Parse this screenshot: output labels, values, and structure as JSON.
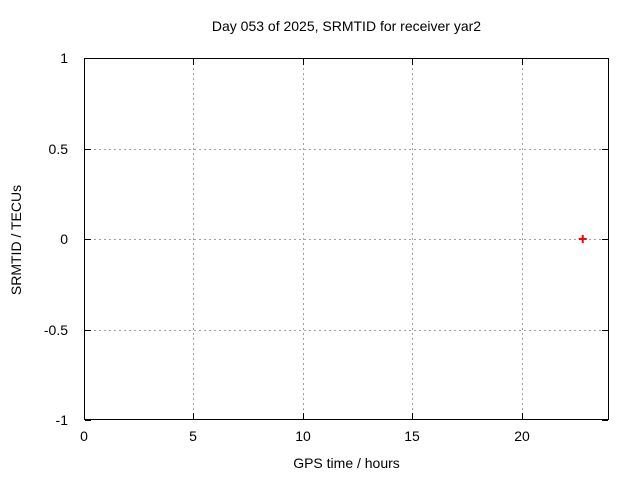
{
  "window": {
    "background": "#ffffff"
  },
  "chart_data": {
    "type": "scatter",
    "title": "Day 053 of 2025, SRMTID for receiver yar2",
    "xlabel": "GPS time / hours",
    "ylabel": "SRMTID / TECUs",
    "xlim": [
      0,
      24
    ],
    "ylim": [
      -1,
      1
    ],
    "xticks": [
      0,
      5,
      10,
      15,
      20
    ],
    "xticklabels": [
      "0",
      "5",
      "10",
      "15",
      "20"
    ],
    "yticks": [
      1,
      0.5,
      0,
      -0.5,
      -1
    ],
    "yticklabels": [
      "1",
      "0.5",
      "0",
      "-0.5",
      "-1"
    ],
    "grid": true,
    "legend_position": "none",
    "series": [
      {
        "name": "SRMTID",
        "marker": "plus",
        "color": "#ff0000",
        "points": [
          {
            "x": 22.8,
            "y": 0.0
          }
        ]
      }
    ]
  },
  "colors": {
    "border": "#000000",
    "grid": "#a0a0a0",
    "text": "#000000",
    "marker": "#ff0000"
  }
}
